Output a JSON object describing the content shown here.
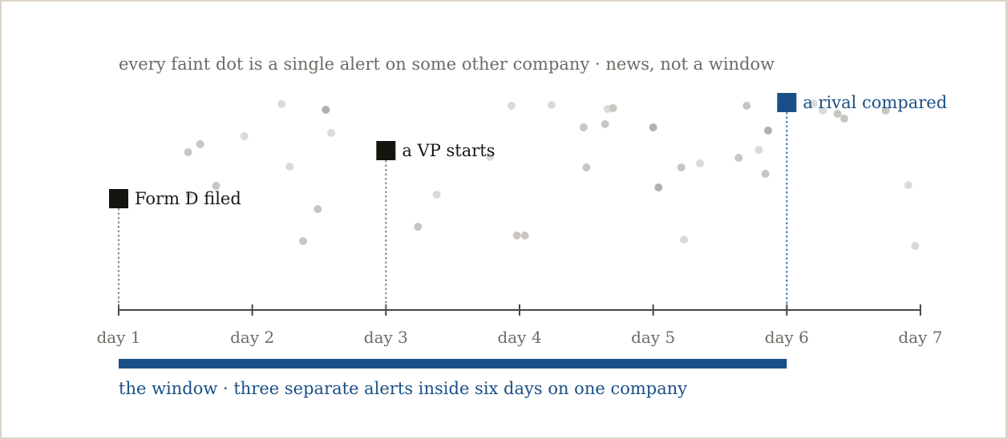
{
  "caption": "every faint dot is a single alert on some other company · news, not a window",
  "axis": {
    "ticks": [
      "day 1",
      "day 2",
      "day 3",
      "day 4",
      "day 5",
      "day 6",
      "day 7"
    ]
  },
  "events": [
    {
      "id": "form-d",
      "label": "Form D filed",
      "day": 1.0,
      "color": "#16140f"
    },
    {
      "id": "vp-starts",
      "label": "a VP starts",
      "day": 3.0,
      "color": "#16140f"
    },
    {
      "id": "rival-compared",
      "label": "a rival compared",
      "day": 6.0,
      "color": "#1a4f86"
    }
  ],
  "window": {
    "start_day": 1.0,
    "end_day": 6.0,
    "label": "the window · three separate alerts inside six days on one company",
    "color": "#1a4f86"
  },
  "background_alerts": [
    {
      "day": 1.52,
      "shade": "mid"
    },
    {
      "day": 1.61,
      "shade": "mid"
    },
    {
      "day": 1.53,
      "shade": "light"
    },
    {
      "day": 1.73,
      "shade": "mid"
    },
    {
      "day": 1.94,
      "shade": "light"
    },
    {
      "day": 2.22,
      "shade": "light"
    },
    {
      "day": 2.28,
      "shade": "light"
    },
    {
      "day": 2.55,
      "shade": "dark"
    },
    {
      "day": 2.59,
      "shade": "light"
    },
    {
      "day": 2.49,
      "shade": "mid"
    },
    {
      "day": 2.38,
      "shade": "mid"
    },
    {
      "day": 3.24,
      "shade": "mid"
    },
    {
      "day": 3.38,
      "shade": "light"
    },
    {
      "day": 3.78,
      "shade": "light"
    },
    {
      "day": 3.94,
      "shade": "light"
    },
    {
      "day": 3.98,
      "shade": "mid"
    },
    {
      "day": 4.04,
      "shade": "mid"
    },
    {
      "day": 4.24,
      "shade": "light"
    },
    {
      "day": 4.48,
      "shade": "mid"
    },
    {
      "day": 4.5,
      "shade": "mid"
    },
    {
      "day": 4.64,
      "shade": "mid"
    },
    {
      "day": 4.66,
      "shade": "light"
    },
    {
      "day": 4.7,
      "shade": "mid"
    },
    {
      "day": 5.0,
      "shade": "dark"
    },
    {
      "day": 5.04,
      "shade": "dark"
    },
    {
      "day": 5.21,
      "shade": "mid"
    },
    {
      "day": 5.23,
      "shade": "light"
    },
    {
      "day": 5.35,
      "shade": "light"
    },
    {
      "day": 5.64,
      "shade": "mid"
    },
    {
      "day": 5.7,
      "shade": "mid"
    },
    {
      "day": 5.79,
      "shade": "light"
    },
    {
      "day": 5.84,
      "shade": "mid"
    },
    {
      "day": 5.86,
      "shade": "dark"
    },
    {
      "day": 6.2,
      "shade": "light"
    },
    {
      "day": 6.27,
      "shade": "light"
    },
    {
      "day": 6.38,
      "shade": "mid"
    },
    {
      "day": 6.43,
      "shade": "mid"
    },
    {
      "day": 6.74,
      "shade": "mid"
    },
    {
      "day": 6.91,
      "shade": "light"
    },
    {
      "day": 6.96,
      "shade": "light"
    }
  ],
  "colors": {
    "axis": "#4a4641",
    "leader": "#6f6a64",
    "dot_light": "#dcdad7",
    "dot_mid": "#c9c6c2",
    "dot_dark": "#b3b0ab"
  }
}
